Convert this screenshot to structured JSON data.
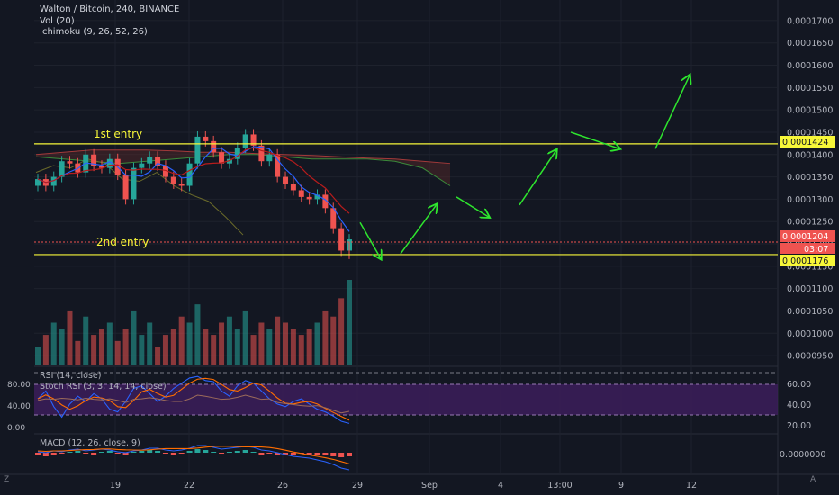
{
  "header": {
    "title": "Walton / Bitcoin, 240, BINANCE",
    "volume_indicator": "Vol (20)",
    "ichimoku_indicator": "Ichimoku (9, 26, 52, 26)"
  },
  "annotations": {
    "entry_1": "1st entry",
    "entry_2": "2nd entry"
  },
  "price_labels": {
    "entry_1_level": "0.0001424",
    "current_price": "0.0001204",
    "countdown": "03:07",
    "entry_2_level": "0.0001176"
  },
  "rsi_panel": {
    "title_rsi": "RSI (14, close)",
    "title_stoch": "Stoch RSI (3, 3, 14, 14, close)"
  },
  "macd_panel": {
    "title": "MACD (12, 26, close, 9)"
  },
  "footer": {
    "left_glyph": "Z",
    "right_glyph": "A"
  },
  "colors": {
    "background": "#131722",
    "grid": "#1e222d",
    "bull": "#26a69a",
    "bear": "#ef5350",
    "entry_line": "#f7f739",
    "arrow": "#2ee62e",
    "rsi_band": "#4a2068"
  },
  "chart_data": [
    {
      "type": "candlestick",
      "title": "Walton / Bitcoin, 240, BINANCE",
      "x_ticks": [
        "19",
        "22",
        "26",
        "29",
        "Sep",
        "4",
        "13:00",
        "9",
        "12"
      ],
      "y_ticks": [
        "0.0001700",
        "0.0001650",
        "0.0001600",
        "0.0001550",
        "0.0001500",
        "0.0001450",
        "0.0001400",
        "0.0001350",
        "0.0001300",
        "0.0001250",
        "0.0001200",
        "0.0001150",
        "0.0001100",
        "0.0001050",
        "0.0001000",
        "0.0000950"
      ],
      "ylim": [
        9.3e-05,
        0.000173
      ],
      "horizontal_levels": [
        0.0001424,
        0.0001176
      ],
      "current_price": 0.0001204,
      "close_series": [
        0.0001345,
        0.000133,
        0.000135,
        0.0001385,
        0.000138,
        0.000136,
        0.00014,
        0.0001375,
        0.000137,
        0.000139,
        0.0001355,
        0.00013,
        0.000137,
        0.000138,
        0.0001395,
        0.0001375,
        0.000135,
        0.0001335,
        0.000133,
        0.000138,
        0.000144,
        0.000143,
        0.0001405,
        0.000138,
        0.000139,
        0.0001415,
        0.0001445,
        0.000142,
        0.0001385,
        0.00014,
        0.000135,
        0.0001335,
        0.000132,
        0.0001305,
        0.00013,
        0.000131,
        0.000128,
        0.0001235,
        0.0001185,
        0.000121
      ],
      "projection": "zig-zag path from 0.000118 up to about 0.000158"
    },
    {
      "type": "bar",
      "title": "Vol (20)",
      "values": [
        3,
        5,
        7,
        6,
        9,
        4,
        8,
        5,
        6,
        7,
        4,
        6,
        9,
        5,
        7,
        3,
        5,
        6,
        8,
        7,
        10,
        6,
        5,
        7,
        8,
        6,
        9,
        5,
        7,
        6,
        8,
        7,
        6,
        5,
        6,
        7,
        9,
        8,
        11,
        14
      ]
    },
    {
      "type": "line",
      "title": "RSI (14, close) / Stoch RSI (3, 3, 14, 14, close)",
      "y_ticks": [
        "80.00",
        "40.00",
        "0.00"
      ],
      "y_ticks_right": [
        "60.00",
        "40.00",
        "20.00"
      ],
      "band": [
        20,
        80
      ]
    },
    {
      "type": "line",
      "title": "MACD (12, 26, close, 9)",
      "y_ticks_right": [
        "0.0000000"
      ]
    }
  ]
}
